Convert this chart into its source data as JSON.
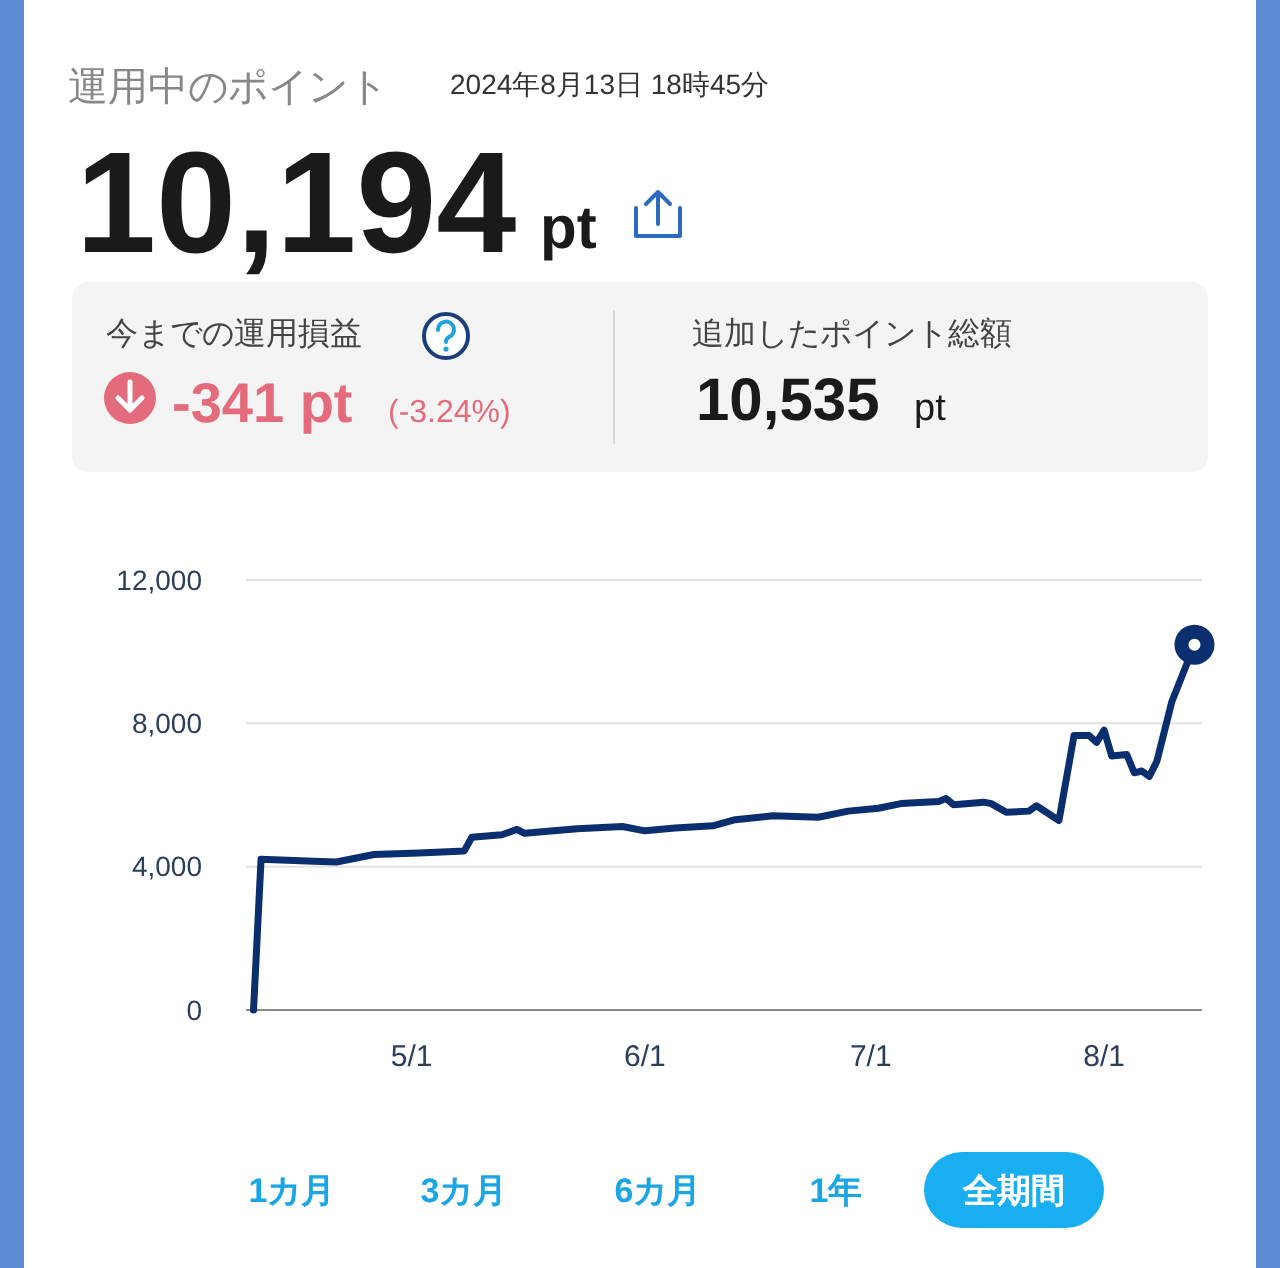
{
  "chart_data": {
    "type": "line",
    "title": "運用中のポイント",
    "subtitle": "2024年8月13日 18時45分",
    "annotations": [
      "10,194",
      "pt",
      "今までの運用損益",
      "-341 pt",
      "(-3.24%)",
      "追加したポイント総額",
      "10,535",
      "pt",
      "1カ月",
      "3カ月",
      "6カ月",
      "1年",
      "全期間"
    ],
    "x": [
      "2024-04-10",
      "2024-04-11",
      "2024-04-18",
      "2024-04-21",
      "2024-04-26",
      "2024-05-02",
      "2024-05-08",
      "2024-05-09",
      "2024-05-13",
      "2024-05-15",
      "2024-05-16",
      "2024-05-23",
      "2024-05-29",
      "2024-06-01",
      "2024-06-05",
      "2024-06-10",
      "2024-06-13",
      "2024-06-18",
      "2024-06-24",
      "2024-06-28",
      "2024-07-02",
      "2024-07-05",
      "2024-07-10",
      "2024-07-11",
      "2024-07-12",
      "2024-07-16",
      "2024-07-17",
      "2024-07-19",
      "2024-07-22",
      "2024-07-23",
      "2024-07-26",
      "2024-07-28",
      "2024-07-30",
      "2024-07-31",
      "2024-08-01",
      "2024-08-02",
      "2024-08-04",
      "2024-08-05",
      "2024-08-06",
      "2024-08-07",
      "2024-08-08",
      "2024-08-10",
      "2024-08-13"
    ],
    "series": [
      {
        "color": "#0b2e6f",
        "values": [
          0,
          4210,
          4150,
          4130,
          4340,
          4380,
          4440,
          4820,
          4890,
          5040,
          4930,
          5060,
          5120,
          5000,
          5080,
          5140,
          5310,
          5420,
          5380,
          5550,
          5630,
          5760,
          5820,
          5900,
          5730,
          5800,
          5760,
          5520,
          5550,
          5700,
          5290,
          7660,
          7660,
          7470,
          7810,
          7090,
          7130,
          6620,
          6670,
          6520,
          6940,
          8610,
          10194
        ]
      }
    ],
    "xlim": [
      "2024-04-09",
      "2024-08-14"
    ],
    "xticks": [
      {
        "value": "2024-05-01",
        "label": "5/1"
      },
      {
        "value": "2024-06-01",
        "label": "6/1"
      },
      {
        "value": "2024-07-01",
        "label": "7/1"
      },
      {
        "value": "2024-08-01",
        "label": "8/1"
      }
    ],
    "ylim": [
      0,
      12000
    ],
    "yticks": [
      {
        "value": 0,
        "label": "0"
      },
      {
        "value": 4000,
        "label": "4,000"
      },
      {
        "value": 8000,
        "label": "8,000"
      },
      {
        "value": 12000,
        "label": "12,000"
      }
    ],
    "grid": "y",
    "marker": "none",
    "line_style": "solid"
  }
}
